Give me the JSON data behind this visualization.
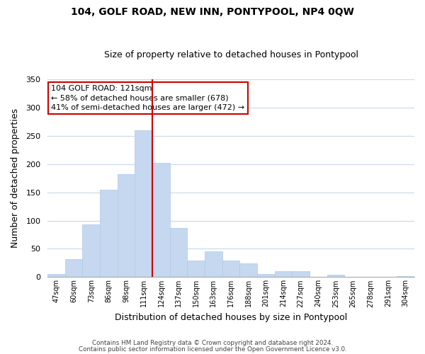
{
  "title": "104, GOLF ROAD, NEW INN, PONTYPOOL, NP4 0QW",
  "subtitle": "Size of property relative to detached houses in Pontypool",
  "xlabel": "Distribution of detached houses by size in Pontypool",
  "ylabel": "Number of detached properties",
  "bar_labels": [
    "47sqm",
    "60sqm",
    "73sqm",
    "86sqm",
    "98sqm",
    "111sqm",
    "124sqm",
    "137sqm",
    "150sqm",
    "163sqm",
    "176sqm",
    "188sqm",
    "201sqm",
    "214sqm",
    "227sqm",
    "240sqm",
    "253sqm",
    "265sqm",
    "278sqm",
    "291sqm",
    "304sqm"
  ],
  "bar_values": [
    6,
    32,
    93,
    155,
    182,
    260,
    202,
    87,
    29,
    46,
    29,
    24,
    6,
    10,
    10,
    0,
    4,
    0,
    0,
    0,
    2
  ],
  "bar_color": "#c5d8f0",
  "bar_edge_color": "#b0c8e8",
  "vline_color": "#cc0000",
  "ylim": [
    0,
    350
  ],
  "yticks": [
    0,
    50,
    100,
    150,
    200,
    250,
    300,
    350
  ],
  "annotation_title": "104 GOLF ROAD: 121sqm",
  "annotation_line1": "← 58% of detached houses are smaller (678)",
  "annotation_line2": "41% of semi-detached houses are larger (472) →",
  "annotation_box_color": "#ffffff",
  "annotation_box_edge": "#cc0000",
  "footer1": "Contains HM Land Registry data © Crown copyright and database right 2024.",
  "footer2": "Contains public sector information licensed under the Open Government Licence v3.0.",
  "background_color": "#ffffff",
  "grid_color": "#c8daea"
}
